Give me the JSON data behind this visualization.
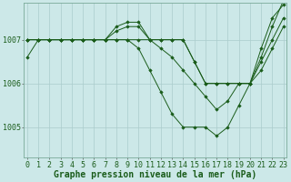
{
  "bg_color": "#cce8e8",
  "grid_color": "#aacccc",
  "line_color": "#1a5c1a",
  "marker_color": "#1a5c1a",
  "xlabel": "Graphe pression niveau de la mer (hPa)",
  "xlabel_fontsize": 7,
  "tick_fontsize": 6,
  "xticks": [
    0,
    1,
    2,
    3,
    4,
    5,
    6,
    7,
    8,
    9,
    10,
    11,
    12,
    13,
    14,
    15,
    16,
    17,
    18,
    19,
    20,
    21,
    22,
    23
  ],
  "ylim": [
    1004.3,
    1007.85
  ],
  "yticks": [
    1005,
    1006,
    1007
  ],
  "series": [
    [
      1006.6,
      1007.0,
      1007.0,
      1007.0,
      1007.0,
      1007.0,
      1007.0,
      1007.0,
      1007.3,
      1007.4,
      1007.4,
      1007.0,
      1006.8,
      1006.6,
      1006.3,
      1006.0,
      1005.7,
      1005.4,
      1005.6,
      1006.0,
      1006.0,
      1006.8,
      1007.5,
      1007.8
    ],
    [
      1007.0,
      1007.0,
      1007.0,
      1007.0,
      1007.0,
      1007.0,
      1007.0,
      1007.0,
      1007.0,
      1007.0,
      1006.8,
      1006.3,
      1005.8,
      1005.3,
      1005.0,
      1005.0,
      1005.0,
      1004.8,
      1005.0,
      1005.5,
      1006.0,
      1006.6,
      1007.3,
      1007.9
    ],
    [
      1007.0,
      1007.0,
      1007.0,
      1007.0,
      1007.0,
      1007.0,
      1007.0,
      1007.0,
      1007.0,
      1007.0,
      1007.0,
      1007.0,
      1007.0,
      1007.0,
      1007.0,
      1006.5,
      1006.0,
      1006.0,
      1006.0,
      1006.0,
      1006.0,
      1006.5,
      1007.0,
      1007.5
    ],
    [
      1007.0,
      1007.0,
      1007.0,
      1007.0,
      1007.0,
      1007.0,
      1007.0,
      1007.0,
      1007.2,
      1007.3,
      1007.3,
      1007.0,
      1007.0,
      1007.0,
      1007.0,
      1006.5,
      1006.0,
      1006.0,
      1006.0,
      1006.0,
      1006.0,
      1006.3,
      1006.8,
      1007.3
    ]
  ]
}
